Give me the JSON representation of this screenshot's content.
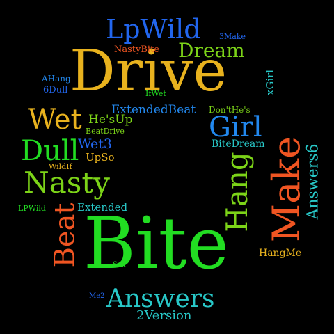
{
  "words": [
    {
      "text": "Drive",
      "color": "#E8B21E"
    },
    {
      "text": "Bite",
      "color": "#22DD22"
    },
    {
      "text": "Make",
      "color": "#F05522"
    },
    {
      "text": "Answers",
      "color": "#28C8C8"
    },
    {
      "text": "LpWild",
      "color": "#2266EE"
    },
    {
      "text": "Dream",
      "color": "#7CD318"
    },
    {
      "text": "Wet",
      "color": "#E8B21E"
    },
    {
      "text": "Girl",
      "color": "#2288EE"
    },
    {
      "text": "Dull",
      "color": "#22DD22"
    },
    {
      "text": "Nasty",
      "color": "#7CD318"
    },
    {
      "text": "Hang",
      "color": "#7CD318"
    },
    {
      "text": "Beat",
      "color": "#F05522"
    },
    {
      "text": "Answers6",
      "color": "#28C8C8"
    },
    {
      "text": "ExtendedBeat",
      "color": "#2288EE"
    },
    {
      "text": "He'sUp",
      "color": "#7CD318"
    },
    {
      "text": "Wet3",
      "color": "#2266EE"
    },
    {
      "text": "UpSo",
      "color": "#E8B21E"
    },
    {
      "text": "Extended",
      "color": "#28C8C8"
    },
    {
      "text": "2Version",
      "color": "#28C8C8"
    },
    {
      "text": "BiteDream",
      "color": "#28C8C8"
    },
    {
      "text": "xGirl",
      "color": "#28C8C8"
    },
    {
      "text": "HangMe",
      "color": "#E8B21E"
    },
    {
      "text": "NastyBite",
      "color": "#F05522"
    },
    {
      "text": "3Make",
      "color": "#2266EE"
    },
    {
      "text": "AHang",
      "color": "#2288EE"
    },
    {
      "text": "6Dull",
      "color": "#2266EE"
    },
    {
      "text": "IfWet",
      "color": "#22DD22"
    },
    {
      "text": "Don'tHe's",
      "color": "#7CD318"
    },
    {
      "text": "BeatDrive",
      "color": "#7CD318"
    },
    {
      "text": "WildIf",
      "color": "#E8B21E"
    },
    {
      "text": "LPWild",
      "color": "#22DD22"
    },
    {
      "text": "Sox",
      "color": "#22DD22"
    },
    {
      "text": "Me2",
      "color": "#2266EE"
    }
  ]
}
